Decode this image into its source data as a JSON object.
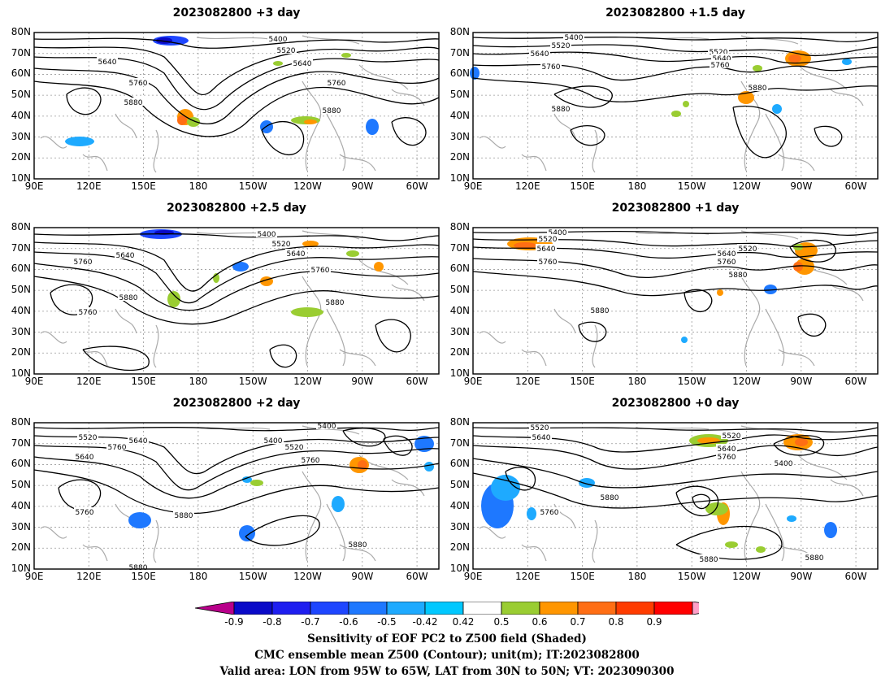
{
  "panels": [
    {
      "title": "2023082800  +3 day",
      "labels": [
        "5400",
        "5520",
        "5640",
        "5640",
        "5760",
        "5760",
        "5880",
        "5880"
      ]
    },
    {
      "title": "2023082800  +1.5 day",
      "labels": [
        "5400",
        "5520",
        "5640",
        "5760",
        "5520",
        "5640",
        "5760",
        "5880",
        "5880"
      ]
    },
    {
      "title": "2023082800  +2.5 day",
      "labels": [
        "5400",
        "5520",
        "5640",
        "5640",
        "5760",
        "5760",
        "5760",
        "5880",
        "5880"
      ]
    },
    {
      "title": "2023082800  +1 day",
      "labels": [
        "5400",
        "5520",
        "5640",
        "5760",
        "5520",
        "5640",
        "5760",
        "5880",
        "5880"
      ]
    },
    {
      "title": "2023082800  +2 day",
      "labels": [
        "5400",
        "5520",
        "5640",
        "5760",
        "5400",
        "5520",
        "5640",
        "5760",
        "5760",
        "5880",
        "5880",
        "5880"
      ]
    },
    {
      "title": "2023082800  +0 day",
      "labels": [
        "5520",
        "5640",
        "5520",
        "5640",
        "5760",
        "5400",
        "5880",
        "5760",
        "5880",
        "5880"
      ]
    }
  ],
  "lat_ticks": [
    "80N",
    "70N",
    "60N",
    "50N",
    "40N",
    "30N",
    "20N",
    "10N"
  ],
  "lon_ticks": [
    "90E",
    "120E",
    "150E",
    "180",
    "150W",
    "120W",
    "90W",
    "60W"
  ],
  "colorbar": {
    "ticks": [
      "-0.9",
      "-0.8",
      "-0.7",
      "-0.6",
      "-0.5",
      "-0.42",
      "0.42",
      "0.5",
      "0.6",
      "0.7",
      "0.8",
      "0.9"
    ],
    "colors": [
      "#b8008a",
      "#0a0ac8",
      "#1e1ef0",
      "#1e46ff",
      "#1e78ff",
      "#1eaaff",
      "#00c8ff",
      "#ffffff",
      "#9acd32",
      "#ff9600",
      "#ff6e14",
      "#ff3c00",
      "#ff0000",
      "#ffa0c8"
    ]
  },
  "caption": {
    "line1": "Sensitivity of EOF PC2 to Z500 field (Shaded)",
    "line2": "CMC ensemble mean Z500 (Contour); unit(m); IT:2023082800",
    "line3": "Valid area: LON from 95W to 65W, LAT from 30N to 50N; VT: 2023090300"
  }
}
